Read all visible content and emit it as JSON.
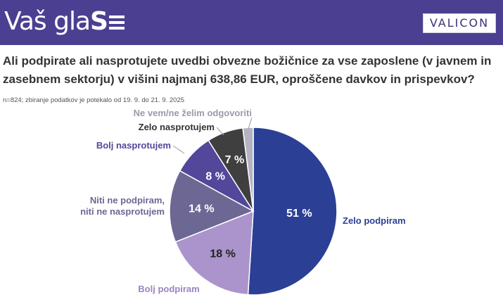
{
  "header": {
    "brand_light": "Vaš gla",
    "brand_bold": "S",
    "logo_text": "VALICON"
  },
  "question": "Ali podpirate ali nasprotujete uvedbi obvezne božičnice za vse zaposlene (v javnem in zasebnem sektorju) v višini najmanj 638,86 EUR, oproščene davkov in prispevkov?",
  "meta": "n=824; zbiranje podatkov je potekalo od 19. 9. do 21. 9. 2025",
  "chart_data": {
    "type": "pie",
    "title": "",
    "unit": "%",
    "slices": [
      {
        "label": "Zelo podpiram",
        "value": 51,
        "display": "51 %",
        "color": "#2b3f95",
        "text_color": "#ffffff",
        "label_color": "#2b3f95"
      },
      {
        "label": "Bolj podpiram",
        "value": 18,
        "display": "18 %",
        "color": "#ab94cb",
        "text_color": "#222222",
        "label_color": "#9a85c2"
      },
      {
        "label": "Niti ne podpiram, niti ne nasprotujem",
        "lines": [
          "Niti ne podpiram,",
          "niti ne nasprotujem"
        ],
        "value": 14,
        "display": "14 %",
        "color": "#6c6793",
        "text_color": "#ffffff",
        "label_color": "#6c6793"
      },
      {
        "label": "Bolj nasprotujem",
        "value": 8,
        "display": "8 %",
        "color": "#52479a",
        "text_color": "#ffffff",
        "label_color": "#52479a"
      },
      {
        "label": "Zelo nasprotujem",
        "value": 7,
        "display": "7 %",
        "color": "#3f3f3f",
        "text_color": "#ffffff",
        "label_color": "#333333"
      },
      {
        "label": "Ne vem/ne želim odgovoriti",
        "value": 2,
        "display": "",
        "color": "#b3b3c2",
        "text_color": "#ffffff",
        "label_color": "#9a9aaa"
      }
    ]
  }
}
